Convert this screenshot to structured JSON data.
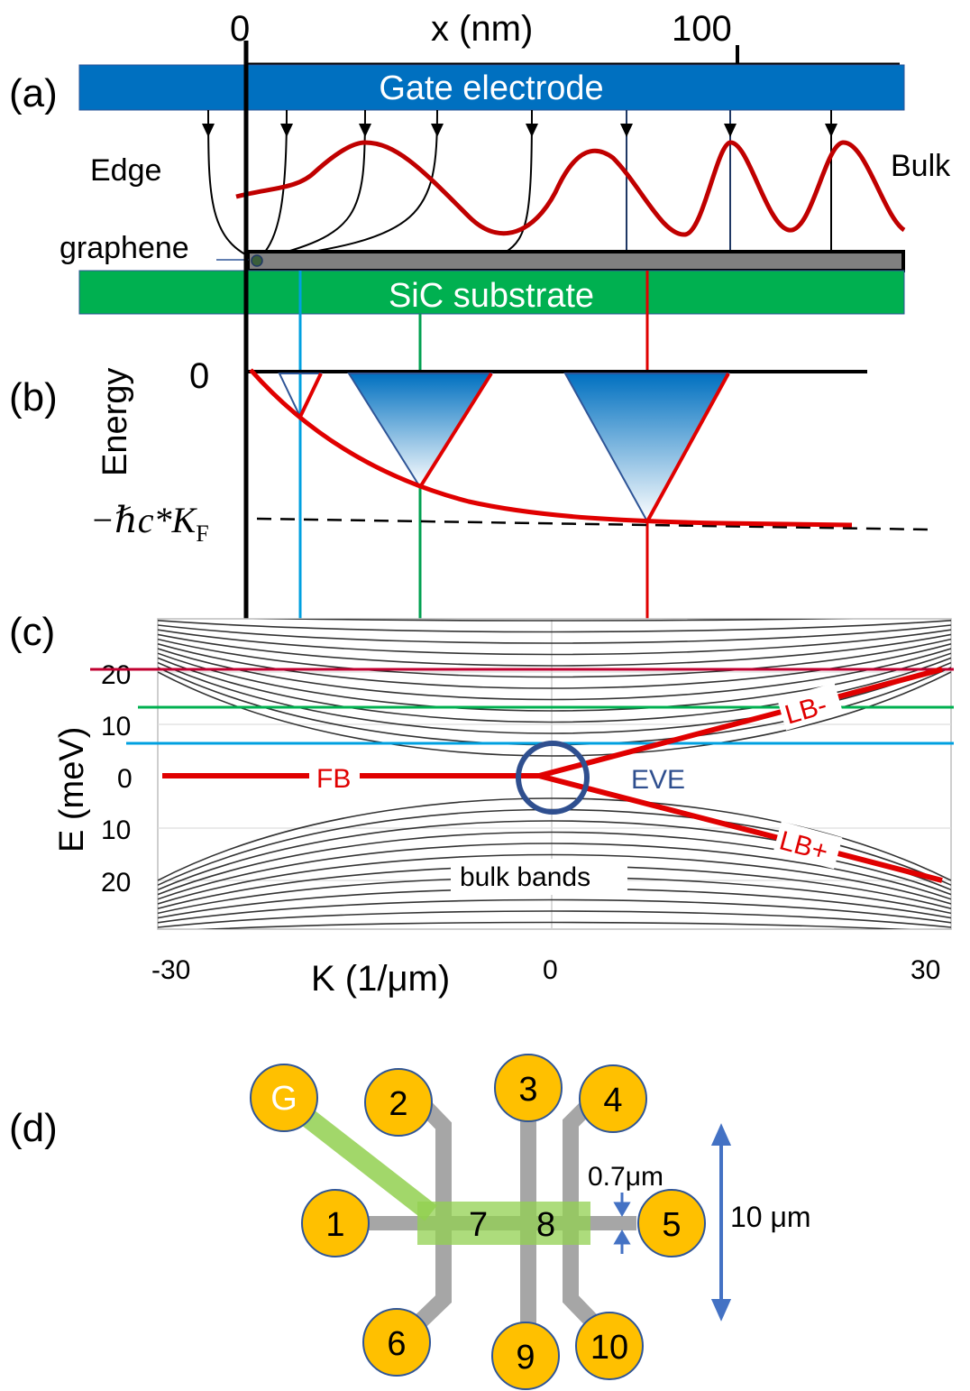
{
  "colors": {
    "gate": "#0070c0",
    "substrate": "#00b050",
    "graphene": "#808080",
    "red": "#e00000",
    "dark_red": "#c00000",
    "cyan": "#00a0e0",
    "green": "#00a050",
    "navy": "#2f4f8f",
    "pad": "#ffc000",
    "lightgreen": "#92d050",
    "arrow_blue": "#4472c4"
  },
  "panel_a": {
    "label": "(a)",
    "x_axis_label": "x (nm)",
    "x_tick_0": "0",
    "x_tick_100": "100",
    "gate_label": "Gate electrode",
    "edge_label": "Edge",
    "bulk_label": "Bulk",
    "graphene_label": "graphene",
    "substrate_label": "SiC substrate"
  },
  "panel_b": {
    "label": "(b)",
    "energy_label": "Energy",
    "zero_label": "0",
    "kf_label": "−ℏc*K",
    "kf_sub": "F"
  },
  "panel_c": {
    "label": "(c)",
    "y_axis_label": "E  (meV)",
    "y_ticks": [
      "20",
      "10",
      "0",
      "10",
      "20"
    ],
    "x_axis_label": "K  (1/μm)",
    "x_ticks": [
      "-30",
      "0",
      "30"
    ],
    "fb_label": "FB",
    "eve_label": "EVE",
    "lbminus_label": "LB-",
    "lbplus_label": "LB+",
    "bulk_label": "bulk bands"
  },
  "panel_d": {
    "label": "(d)",
    "pads": [
      "G",
      "1",
      "2",
      "3",
      "4",
      "5",
      "6",
      "9",
      "10"
    ],
    "inner_labels": [
      "7",
      "8"
    ],
    "width_label": "0.7μm",
    "length_label": "10 μm"
  }
}
